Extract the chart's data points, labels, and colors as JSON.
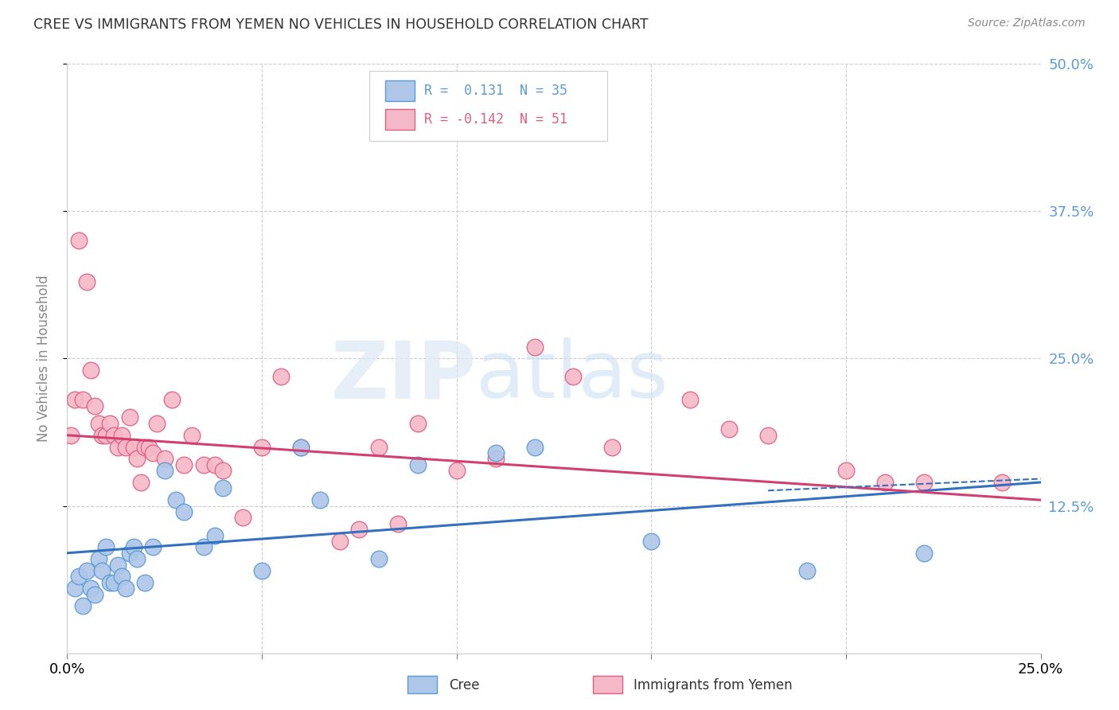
{
  "title": "CREE VS IMMIGRANTS FROM YEMEN NO VEHICLES IN HOUSEHOLD CORRELATION CHART",
  "source": "Source: ZipAtlas.com",
  "ylabel": "No Vehicles in Household",
  "xlim": [
    0.0,
    0.25
  ],
  "ylim": [
    0.0,
    0.5
  ],
  "ytick_labels": [
    "50.0%",
    "37.5%",
    "25.0%",
    "12.5%"
  ],
  "ytick_values": [
    0.5,
    0.375,
    0.25,
    0.125
  ],
  "right_axis_color": "#5b9bd5",
  "grid_color": "#cccccc",
  "background_color": "#ffffff",
  "cree_color": "#aec6e8",
  "cree_edge_color": "#5b9bd5",
  "yemen_color": "#f4b8c8",
  "yemen_edge_color": "#e06080",
  "cree_line_color": "#3370c0",
  "yemen_line_color": "#d04070",
  "cree_line_start_y": 0.085,
  "cree_line_end_y": 0.145,
  "yemen_line_start_y": 0.185,
  "yemen_line_end_y": 0.13,
  "cree_points_x": [
    0.002,
    0.003,
    0.004,
    0.005,
    0.006,
    0.007,
    0.008,
    0.009,
    0.01,
    0.011,
    0.012,
    0.013,
    0.014,
    0.015,
    0.016,
    0.017,
    0.018,
    0.02,
    0.022,
    0.025,
    0.028,
    0.03,
    0.035,
    0.038,
    0.04,
    0.05,
    0.06,
    0.065,
    0.08,
    0.09,
    0.11,
    0.12,
    0.15,
    0.19,
    0.22
  ],
  "cree_points_y": [
    0.055,
    0.065,
    0.04,
    0.07,
    0.055,
    0.05,
    0.08,
    0.07,
    0.09,
    0.06,
    0.06,
    0.075,
    0.065,
    0.055,
    0.085,
    0.09,
    0.08,
    0.06,
    0.09,
    0.155,
    0.13,
    0.12,
    0.09,
    0.1,
    0.14,
    0.07,
    0.175,
    0.13,
    0.08,
    0.16,
    0.17,
    0.175,
    0.095,
    0.07,
    0.085
  ],
  "yemen_points_x": [
    0.001,
    0.002,
    0.003,
    0.004,
    0.005,
    0.006,
    0.007,
    0.008,
    0.009,
    0.01,
    0.011,
    0.012,
    0.013,
    0.014,
    0.015,
    0.016,
    0.017,
    0.018,
    0.019,
    0.02,
    0.021,
    0.022,
    0.023,
    0.025,
    0.027,
    0.03,
    0.032,
    0.035,
    0.038,
    0.04,
    0.045,
    0.05,
    0.055,
    0.06,
    0.07,
    0.075,
    0.08,
    0.085,
    0.09,
    0.1,
    0.11,
    0.12,
    0.13,
    0.14,
    0.16,
    0.17,
    0.18,
    0.2,
    0.21,
    0.22,
    0.24
  ],
  "yemen_points_y": [
    0.185,
    0.215,
    0.35,
    0.215,
    0.315,
    0.24,
    0.21,
    0.195,
    0.185,
    0.185,
    0.195,
    0.185,
    0.175,
    0.185,
    0.175,
    0.2,
    0.175,
    0.165,
    0.145,
    0.175,
    0.175,
    0.17,
    0.195,
    0.165,
    0.215,
    0.16,
    0.185,
    0.16,
    0.16,
    0.155,
    0.115,
    0.175,
    0.235,
    0.175,
    0.095,
    0.105,
    0.175,
    0.11,
    0.195,
    0.155,
    0.165,
    0.26,
    0.235,
    0.175,
    0.215,
    0.19,
    0.185,
    0.155,
    0.145,
    0.145,
    0.145
  ],
  "extra_xticks": [
    0.05,
    0.1,
    0.15,
    0.2
  ],
  "watermark_zip": "ZIP",
  "watermark_atlas": "atlas",
  "legend_cree_text": "R =  0.131  N = 35",
  "legend_yemen_text": "R = -0.142  N = 51",
  "bottom_legend_cree": "Cree",
  "bottom_legend_yemen": "Immigrants from Yemen"
}
